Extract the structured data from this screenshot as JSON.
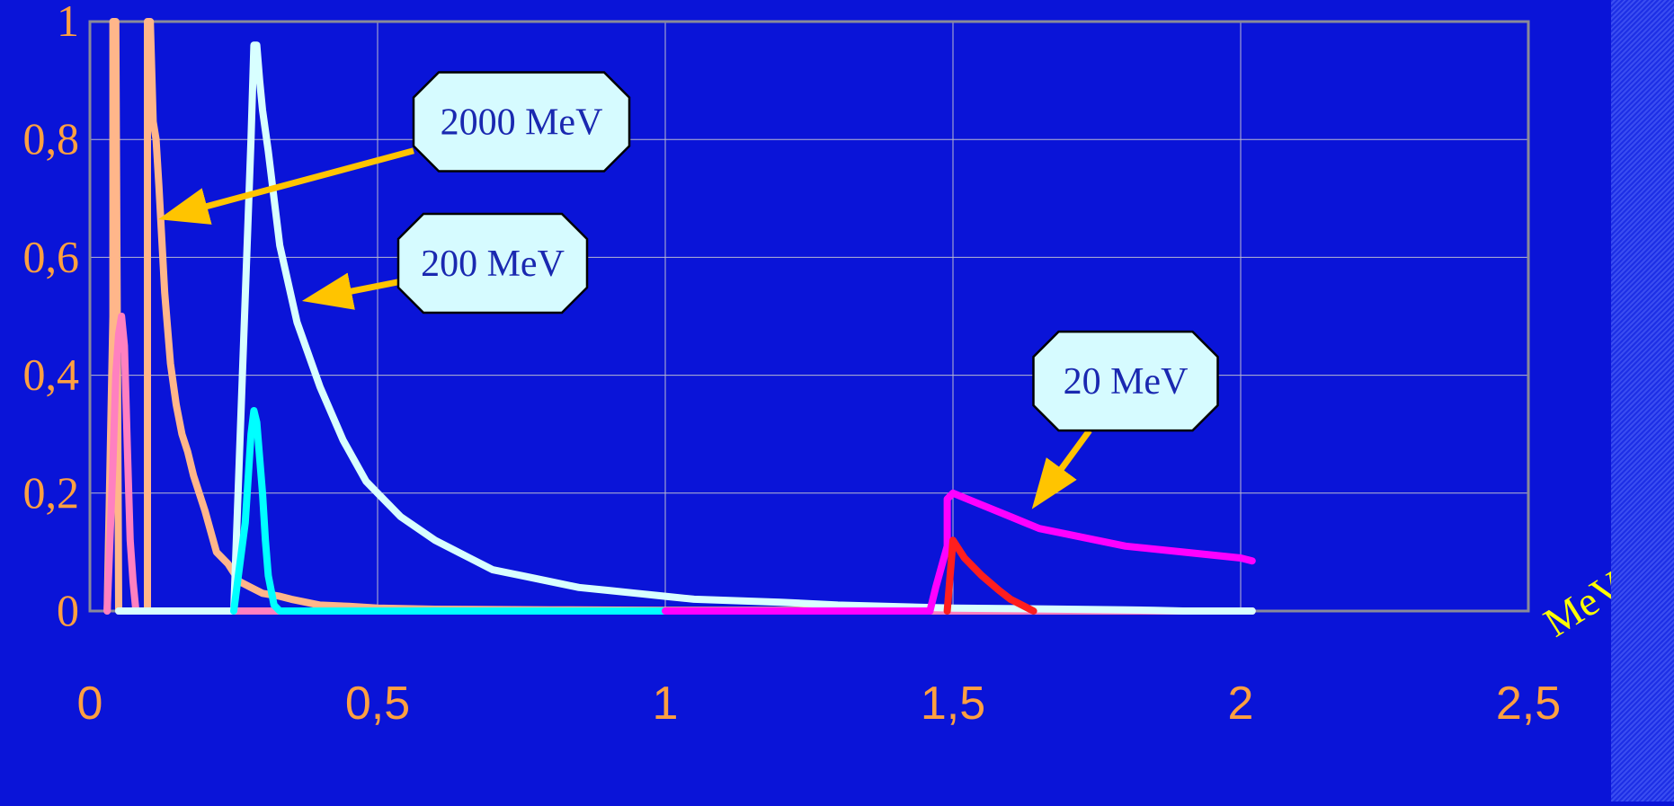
{
  "chart_data": {
    "type": "line",
    "xlabel": "MeV",
    "ylabel": "",
    "xlim": [
      0,
      2.5
    ],
    "ylim": [
      0,
      1
    ],
    "x_ticks": [
      "0",
      "0,5",
      "1",
      "1,5",
      "2",
      "2,5"
    ],
    "y_ticks": [
      "0",
      "0,2",
      "0,4",
      "0,6",
      "0,8",
      "1"
    ],
    "grid": true,
    "annotations": [
      {
        "text": "2000 MeV",
        "box_at": [
          0.75,
          0.83
        ],
        "arrow_to": [
          0.14,
          0.67
        ]
      },
      {
        "text": "200 MeV",
        "box_at": [
          0.7,
          0.59
        ],
        "arrow_to": [
          0.39,
          0.53
        ]
      },
      {
        "text": "20 MeV",
        "box_at": [
          1.8,
          0.39
        ],
        "arrow_to": [
          1.65,
          0.19
        ]
      }
    ],
    "series": [
      {
        "color": "#ffb68a",
        "x": [
          0.03,
          0.04,
          0.04,
          0.045,
          0.05,
          0.1,
          0.1,
          0.105,
          0.11,
          0.115,
          0.12,
          0.13,
          0.14,
          0.15,
          0.16,
          0.17,
          0.18,
          0.2,
          0.22,
          0.24,
          0.26,
          0.28,
          0.3,
          0.33,
          0.35,
          0.4,
          0.45,
          0.5,
          0.6,
          0.8,
          1.0,
          1.2,
          1.4,
          1.6,
          1.8,
          2.02
        ],
        "y": [
          0,
          0.5,
          1.0,
          1.0,
          0,
          0,
          1.0,
          1.0,
          0.83,
          0.8,
          0.72,
          0.54,
          0.42,
          0.35,
          0.3,
          0.27,
          0.23,
          0.17,
          0.1,
          0.08,
          0.05,
          0.04,
          0.03,
          0.025,
          0.02,
          0.01,
          0.008,
          0.005,
          0.003,
          0.002,
          0.001,
          0.001,
          0.001,
          0.001,
          0,
          0
        ]
      },
      {
        "color": "#ff80c0",
        "x": [
          0.03,
          0.04,
          0.045,
          0.05,
          0.055,
          0.06,
          0.065,
          0.07,
          0.075,
          0.08,
          0.09,
          0.5,
          1.0,
          1.5,
          2.02
        ],
        "y": [
          0,
          0.25,
          0.4,
          0.47,
          0.5,
          0.45,
          0.28,
          0.12,
          0.05,
          0,
          0,
          0,
          0,
          0,
          0
        ]
      },
      {
        "color": "#d8ffff",
        "x": [
          0.05,
          0.25,
          0.28,
          0.285,
          0.29,
          0.295,
          0.3,
          0.31,
          0.32,
          0.33,
          0.36,
          0.4,
          0.44,
          0.48,
          0.5,
          0.54,
          0.6,
          0.66,
          0.7,
          0.75,
          0.8,
          0.85,
          0.9,
          0.95,
          1.0,
          1.05,
          1.2,
          1.3,
          1.5,
          1.7,
          1.8,
          1.85,
          1.9,
          2.02
        ],
        "y": [
          0,
          0,
          0.8,
          0.96,
          0.96,
          0.9,
          0.85,
          0.78,
          0.7,
          0.62,
          0.49,
          0.38,
          0.29,
          0.22,
          0.2,
          0.16,
          0.12,
          0.09,
          0.07,
          0.06,
          0.05,
          0.04,
          0.035,
          0.03,
          0.025,
          0.02,
          0.015,
          0.01,
          0.005,
          0.003,
          0.002,
          0.001,
          0,
          0
        ]
      },
      {
        "color": "#00ffff",
        "x": [
          0.25,
          0.27,
          0.28,
          0.285,
          0.29,
          0.295,
          0.3,
          0.305,
          0.31,
          0.32,
          0.33,
          0.5,
          1.0
        ],
        "y": [
          0,
          0.15,
          0.3,
          0.34,
          0.32,
          0.26,
          0.2,
          0.12,
          0.06,
          0.01,
          0,
          0,
          0
        ]
      },
      {
        "color": "#ff00ff",
        "x": [
          1.0,
          1.46,
          1.47,
          1.49,
          1.49,
          1.5,
          1.55,
          1.6,
          1.65,
          1.7,
          1.8,
          1.9,
          2.0,
          2.02
        ],
        "y": [
          0,
          0,
          0.04,
          0.11,
          0.19,
          0.2,
          0.18,
          0.16,
          0.14,
          0.13,
          0.11,
          0.1,
          0.09,
          0.085
        ]
      },
      {
        "color": "#ff1e1e",
        "x": [
          1.49,
          1.5,
          1.52,
          1.55,
          1.58,
          1.6,
          1.62,
          1.64
        ],
        "y": [
          0,
          0.12,
          0.09,
          0.06,
          0.035,
          0.02,
          0.01,
          0
        ]
      }
    ]
  }
}
